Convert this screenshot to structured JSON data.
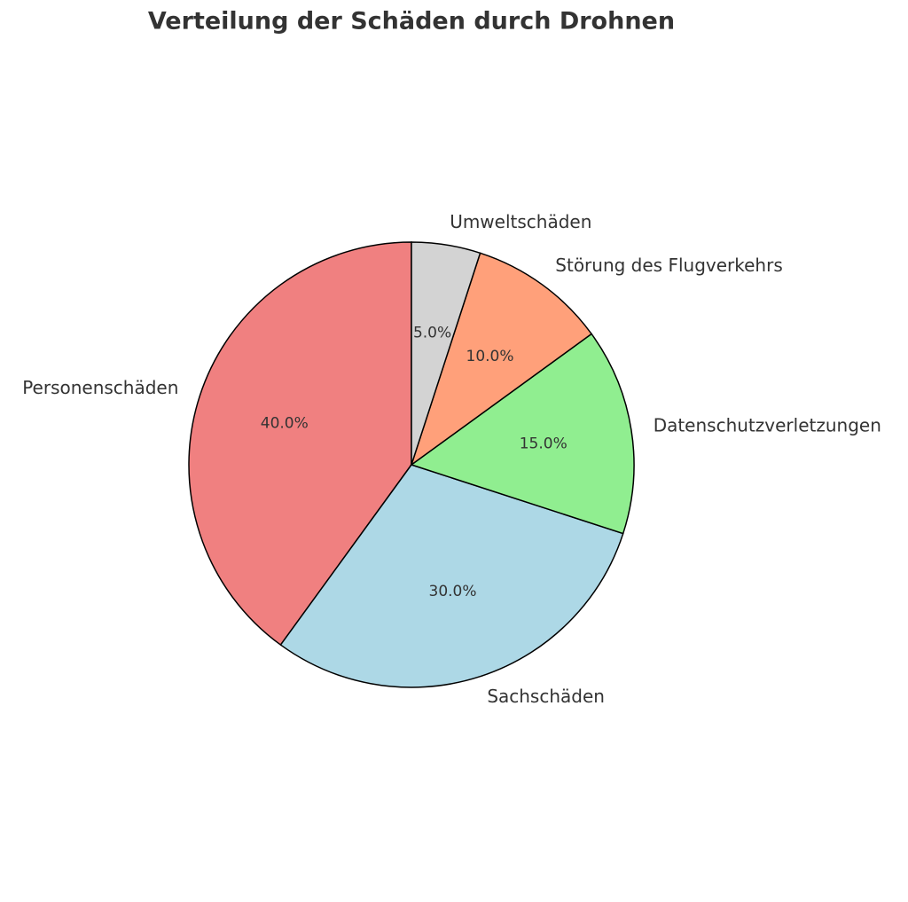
{
  "chart_data": {
    "type": "pie",
    "title": "Verteilung der Schäden durch Drohnen",
    "categories": [
      "Personenschäden",
      "Sachschäden",
      "Datenschutzverletzungen",
      "Störung des Flugverkehrs",
      "Umweltschäden"
    ],
    "values": [
      40,
      30,
      15,
      10,
      5
    ],
    "value_labels": [
      "40.0%",
      "30.0%",
      "15.0%",
      "10.0%",
      "5.0%"
    ],
    "colors": [
      "#f08080",
      "#add8e6",
      "#90ee90",
      "#ffa07a",
      "#d3d3d3"
    ]
  }
}
